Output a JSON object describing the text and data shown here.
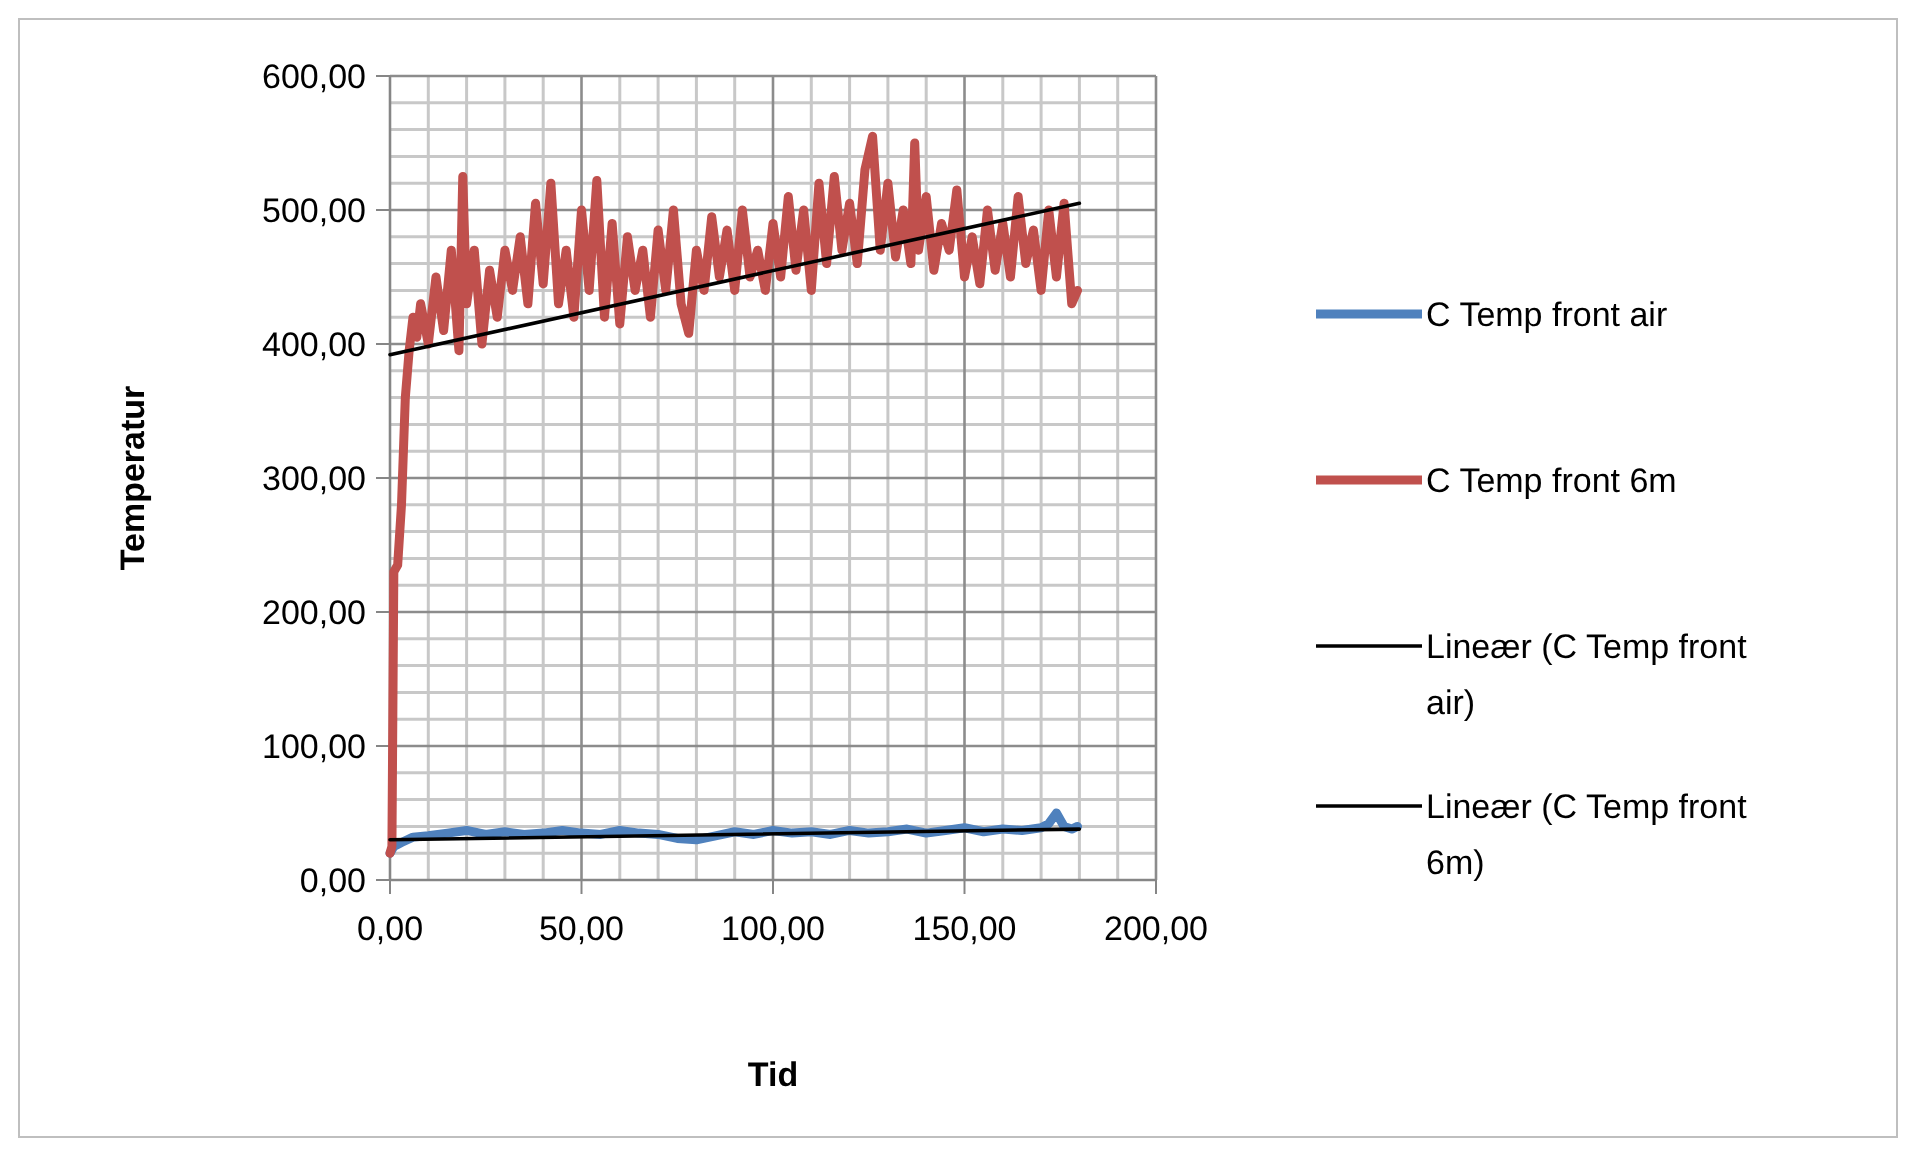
{
  "chart_data": {
    "type": "line",
    "xlabel": "Tid",
    "ylabel": "Temperatur",
    "xlim": [
      0,
      200
    ],
    "ylim": [
      0,
      600
    ],
    "xticks": [
      {
        "value": 0,
        "label": "0,00"
      },
      {
        "value": 50,
        "label": "50,00"
      },
      {
        "value": 100,
        "label": "100,00"
      },
      {
        "value": 150,
        "label": "150,00"
      },
      {
        "value": 200,
        "label": "200,00"
      }
    ],
    "yticks": [
      {
        "value": 0,
        "label": "0,00"
      },
      {
        "value": 100,
        "label": "100,00"
      },
      {
        "value": 200,
        "label": "200,00"
      },
      {
        "value": 300,
        "label": "300,00"
      },
      {
        "value": 400,
        "label": "400,00"
      },
      {
        "value": 500,
        "label": "500,00"
      },
      {
        "value": 600,
        "label": "600,00"
      }
    ],
    "grid": true,
    "legend": "right",
    "marker": "none",
    "line_style": "solid",
    "series": [
      {
        "name": "C Temp front air",
        "color": "#4f81bd",
        "x": [
          0,
          1,
          3,
          6,
          10,
          15,
          20,
          25,
          30,
          35,
          40,
          45,
          50,
          55,
          60,
          65,
          70,
          75,
          80,
          85,
          90,
          95,
          100,
          105,
          110,
          115,
          120,
          125,
          130,
          135,
          140,
          145,
          150,
          155,
          160,
          165,
          170,
          172,
          174,
          176,
          178,
          179.5
        ],
        "values": [
          20,
          25,
          28,
          32,
          33,
          35,
          37,
          34,
          36,
          34,
          35,
          37,
          35,
          34,
          37,
          35,
          34,
          31,
          30,
          33,
          36,
          34,
          37,
          35,
          36,
          34,
          37,
          35,
          36,
          38,
          35,
          37,
          39,
          36,
          38,
          37,
          39,
          42,
          50,
          40,
          38,
          40
        ]
      },
      {
        "name": "C Temp front 6m",
        "color": "#c0504d",
        "x": [
          0,
          0.5,
          1,
          2,
          3,
          4,
          5,
          6,
          7,
          8,
          10,
          12,
          14,
          16,
          18,
          19,
          20,
          22,
          24,
          26,
          28,
          30,
          32,
          34,
          36,
          38,
          40,
          42,
          44,
          46,
          48,
          50,
          52,
          54,
          56,
          58,
          60,
          62,
          64,
          66,
          68,
          70,
          72,
          74,
          76,
          78,
          80,
          82,
          84,
          86,
          88,
          90,
          92,
          94,
          96,
          98,
          100,
          102,
          104,
          106,
          108,
          110,
          112,
          114,
          116,
          118,
          120,
          122,
          124,
          126,
          128,
          130,
          132,
          134,
          136,
          137,
          138,
          140,
          142,
          144,
          146,
          148,
          150,
          152,
          154,
          156,
          158,
          160,
          162,
          164,
          166,
          168,
          170,
          172,
          174,
          176,
          178,
          179.5
        ],
        "values": [
          20,
          25,
          230,
          235,
          280,
          360,
          395,
          420,
          405,
          430,
          400,
          450,
          410,
          470,
          395,
          525,
          430,
          470,
          400,
          455,
          420,
          470,
          440,
          480,
          430,
          505,
          445,
          520,
          430,
          470,
          420,
          500,
          440,
          522,
          420,
          490,
          415,
          480,
          440,
          470,
          420,
          485,
          440,
          500,
          430,
          408,
          470,
          440,
          495,
          450,
          485,
          440,
          500,
          450,
          470,
          440,
          490,
          450,
          510,
          455,
          500,
          440,
          520,
          460,
          525,
          470,
          505,
          460,
          530,
          555,
          470,
          520,
          465,
          500,
          460,
          550,
          470,
          510,
          455,
          490,
          470,
          515,
          450,
          480,
          445,
          500,
          455,
          490,
          450,
          510,
          460,
          485,
          440,
          500,
          450,
          505,
          430,
          440
        ]
      },
      {
        "name": "Lineær (C Temp front air)",
        "color": "#000000",
        "x": [
          0,
          180
        ],
        "values": [
          30,
          38
        ]
      },
      {
        "name": "Lineær (C Temp front 6m)",
        "color": "#000000",
        "x": [
          0,
          180
        ],
        "values": [
          392,
          505
        ]
      }
    ]
  }
}
